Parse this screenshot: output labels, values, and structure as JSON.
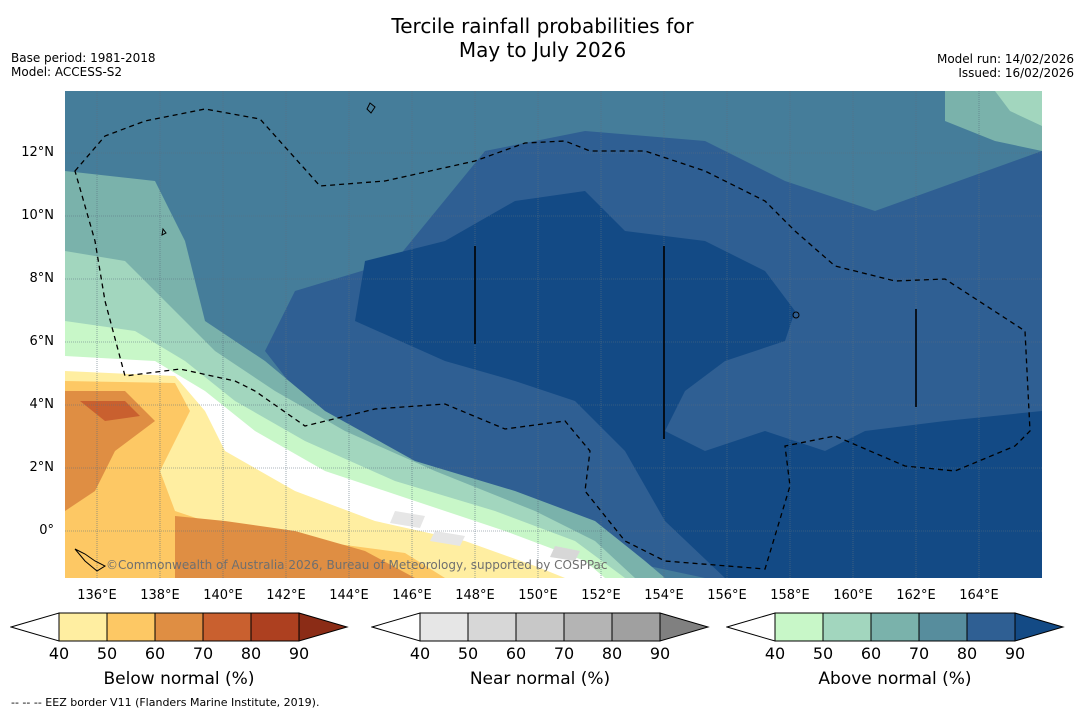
{
  "title": {
    "line1": "Tercile rainfall probabilities for",
    "line2": "May to July 2026"
  },
  "meta": {
    "base_period": "Base period: 1981-2018",
    "model": "Model: ACCESS-S2",
    "model_run": "Model run: 14/02/2026",
    "issued": "Issued: 16/02/2026"
  },
  "map": {
    "copyright": "©Commonwealth of Australia 2026, Bureau of Meteorology, supported by COSPPac",
    "lat_labels": [
      "12°N",
      "10°N",
      "8°N",
      "6°N",
      "4°N",
      "2°N",
      "0°"
    ],
    "lon_labels": [
      "136°E",
      "138°E",
      "140°E",
      "142°E",
      "144°E",
      "146°E",
      "148°E",
      "150°E",
      "152°E",
      "154°E",
      "156°E",
      "158°E",
      "160°E",
      "162°E",
      "164°E"
    ]
  },
  "colorbars": [
    {
      "label": "Below normal (%)",
      "ticks": [
        "40",
        "50",
        "60",
        "70",
        "80",
        "90"
      ],
      "colors": [
        "#ffeea1",
        "#fdc864",
        "#df8e43",
        "#c9602f",
        "#ad4020"
      ],
      "ext_color": "#8b2c16"
    },
    {
      "label": "Near normal (%)",
      "ticks": [
        "40",
        "50",
        "60",
        "70",
        "80",
        "90"
      ],
      "colors": [
        "#e6e6e6",
        "#d7d7d7",
        "#c8c8c8",
        "#b4b4b4",
        "#a0a0a0"
      ],
      "ext_color": "#808080"
    },
    {
      "label": "Above normal (%)",
      "ticks": [
        "40",
        "50",
        "60",
        "70",
        "80",
        "90"
      ],
      "colors": [
        "#c8f7c8",
        "#a2d6be",
        "#7ab2ab",
        "#578d9d",
        "#2f5f93"
      ],
      "ext_color": "#134a85"
    }
  ],
  "footnote": "--  --  -- EEZ border V11 (Flanders Marine Institute, 2019)."
}
